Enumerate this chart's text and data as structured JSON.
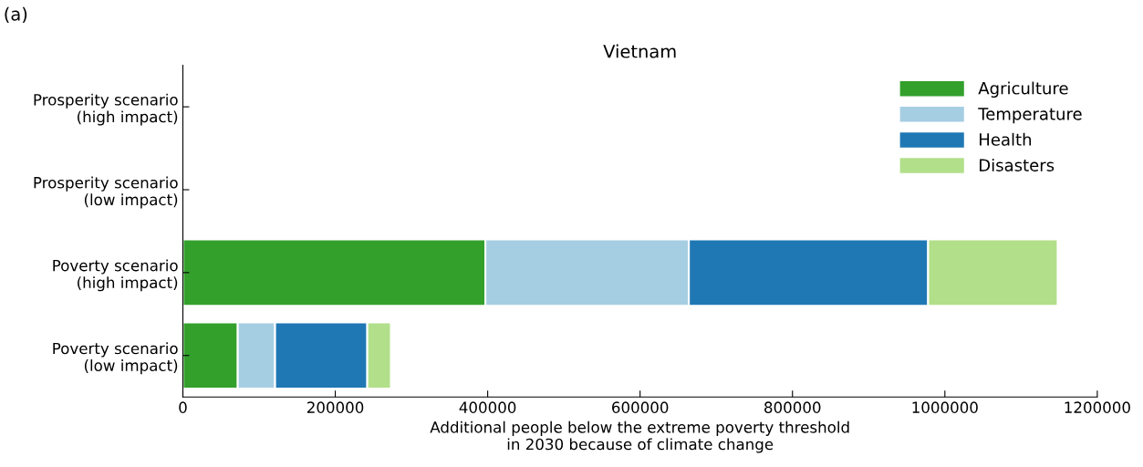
{
  "chart_data": {
    "type": "bar",
    "orientation": "horizontal",
    "stacked": true,
    "title": "Vietnam",
    "xlabel": "Additional people below the extreme poverty threshold\nin 2030 because of climate change",
    "annotations": [
      "(a)"
    ],
    "categories": [
      "Prosperity scenario\n(high impact)",
      "Prosperity scenario\n(low impact)",
      "Poverty scenario\n(high impact)",
      "Poverty scenario\n(low impact)"
    ],
    "series": [
      {
        "name": "Agriculture",
        "color": "#33a02c",
        "values": [
          null,
          null,
          397000,
          72000
        ]
      },
      {
        "name": "Temperature",
        "color": "#a6cee3",
        "values": [
          null,
          null,
          267000,
          49000
        ]
      },
      {
        "name": "Health",
        "color": "#1f78b4",
        "values": [
          null,
          null,
          314000,
          121000
        ]
      },
      {
        "name": "Disasters",
        "color": "#b2df8a",
        "values": [
          null,
          null,
          170000,
          31000
        ]
      }
    ],
    "xlim": [
      0,
      1200000
    ],
    "xticks": [
      0,
      200000,
      400000,
      600000,
      800000,
      1000000,
      1200000
    ],
    "grid": false,
    "legend": "top right"
  }
}
